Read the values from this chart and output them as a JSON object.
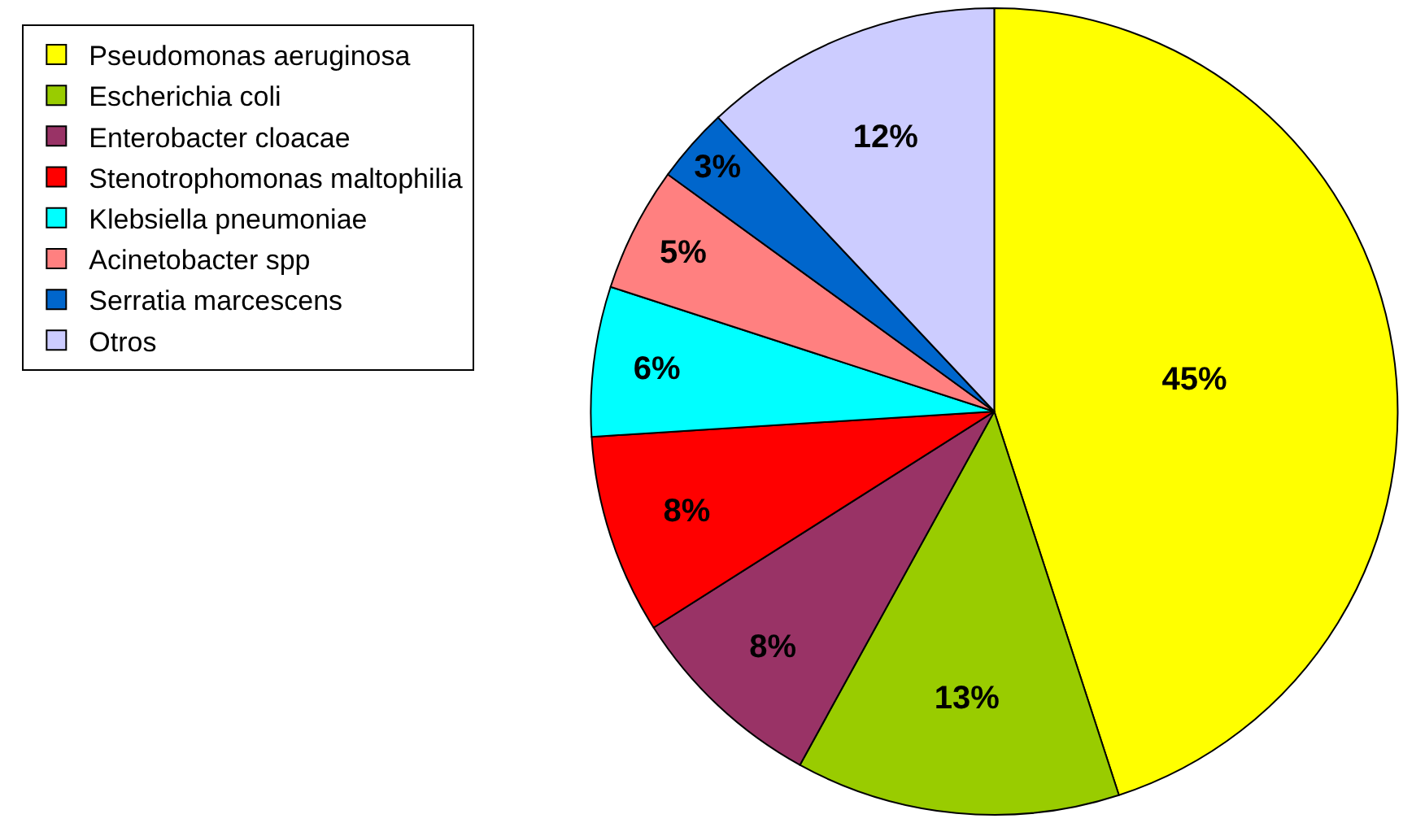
{
  "chart_data": {
    "type": "pie",
    "categories": [
      "Pseudomonas aeruginosa",
      "Escherichia coli",
      "Enterobacter cloacae",
      "Stenotrophomonas maltophilia",
      "Klebsiella pneumoniae",
      "Acinetobacter spp",
      "Serratia marcescens",
      "Otros"
    ],
    "values": [
      45,
      13,
      8,
      8,
      6,
      5,
      3,
      12
    ],
    "value_labels": [
      "45%",
      "13%",
      "8%",
      "8%",
      "6%",
      "5%",
      "3%",
      "12%"
    ],
    "colors": [
      "#ffff00",
      "#99cc00",
      "#993366",
      "#ff0000",
      "#00ffff",
      "#ff8080",
      "#0066cc",
      "#ccccff"
    ],
    "legend": "left"
  }
}
